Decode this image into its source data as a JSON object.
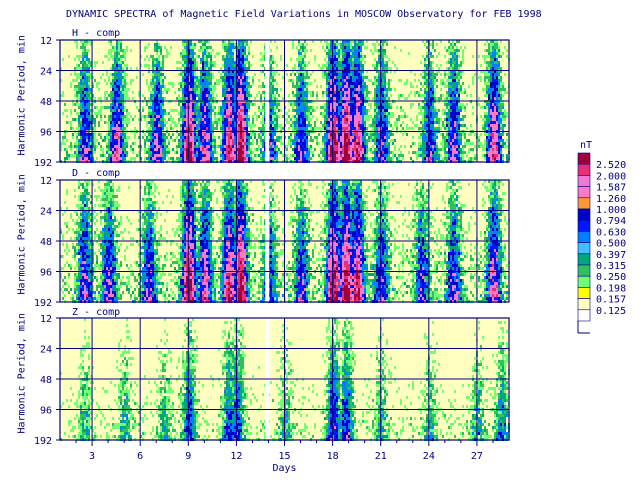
{
  "chart_data": {
    "type": "heatmap",
    "title": "DYNAMIC SPECTRA of Magnetic Field Variations in MOSCOW Observatory for FEB 1998",
    "xlabel": "Days",
    "ylabel": "Harmonic Period, min",
    "x_ticks": [
      "3",
      "6",
      "9",
      "12",
      "15",
      "18",
      "21",
      "24",
      "27"
    ],
    "y_ticks": [
      "12",
      "24",
      "48",
      "96",
      "192"
    ],
    "xlim": [
      1,
      29
    ],
    "y_scale": "log2",
    "colorbar": {
      "unit": "nT",
      "levels": [
        "2.520",
        "2.000",
        "1.587",
        "1.260",
        "1.000",
        "0.794",
        "0.630",
        "0.500",
        "0.397",
        "0.315",
        "0.250",
        "0.198",
        "0.157",
        "0.125"
      ],
      "colors": [
        "#a0003a",
        "#e8307a",
        "#f07ad0",
        "#ff78c0",
        "#ff9933",
        "#0000c8",
        "#0018ff",
        "#0080ff",
        "#40c0ff",
        "#00a878",
        "#30c060",
        "#70ff70",
        "#ffff00",
        "#ffffc0",
        "#ffffff"
      ]
    },
    "panels": [
      {
        "name": "H - comp",
        "activity": {
          "days": [
            2.5,
            4.5,
            7.0,
            9.0,
            10.0,
            11.5,
            12.2,
            14.0,
            16.0,
            18.0,
            18.8,
            19.5,
            21.0,
            24.0,
            25.5,
            28.0
          ],
          "strength": [
            0.55,
            0.65,
            0.6,
            0.95,
            0.7,
            0.85,
            1.0,
            0.45,
            0.55,
            1.0,
            1.0,
            0.9,
            0.55,
            0.5,
            0.6,
            0.75
          ]
        }
      },
      {
        "name": "D - comp",
        "activity": {
          "days": [
            2.5,
            4.0,
            6.5,
            9.0,
            10.0,
            11.5,
            12.2,
            14.0,
            16.0,
            18.0,
            18.8,
            19.5,
            21.0,
            23.5,
            25.5,
            28.0
          ],
          "strength": [
            0.6,
            0.6,
            0.55,
            1.0,
            0.7,
            0.85,
            1.0,
            0.45,
            0.5,
            1.0,
            1.0,
            0.9,
            0.55,
            0.5,
            0.55,
            0.7
          ]
        }
      },
      {
        "name": "Z - comp",
        "activity": {
          "days": [
            2.5,
            5.0,
            7.5,
            9.0,
            11.5,
            12.0,
            15.0,
            18.0,
            18.8,
            21.0,
            24.0,
            27.0,
            28.5
          ],
          "strength": [
            0.3,
            0.3,
            0.3,
            0.55,
            0.5,
            0.55,
            0.3,
            0.65,
            0.6,
            0.3,
            0.3,
            0.3,
            0.4
          ]
        }
      }
    ]
  }
}
